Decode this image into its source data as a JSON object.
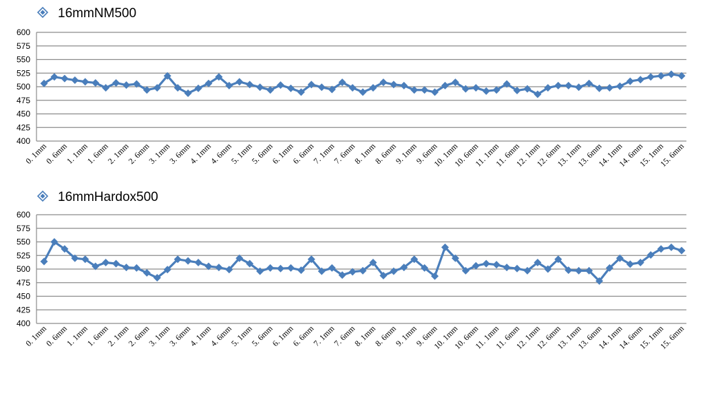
{
  "colors": {
    "series": "#4a7ebb",
    "grid": "#8c8c8c",
    "axis": "#8c8c8c"
  },
  "chart_data": [
    {
      "type": "line",
      "legend": "16mmNM500",
      "legend_position": "top-left",
      "grid": true,
      "ylim": [
        400,
        600
      ],
      "yticks": [
        400,
        425,
        450,
        475,
        500,
        525,
        550,
        575,
        600
      ],
      "tick_labels": [
        "0. 1mm",
        "0. 6mm",
        "1. 1mm",
        "1. 6mm",
        "2. 1mm",
        "2. 6mm",
        "3. 1mm",
        "3. 6mm",
        "4. 1mm",
        "4. 6mm",
        "5. 1mm",
        "5. 6mm",
        "6. 1mm",
        "6. 6mm",
        "7. 1mm",
        "7. 6mm",
        "8. 1mm",
        "8. 6mm",
        "9. 1mm",
        "9. 6mm",
        "10. 1mm",
        "10. 6mm",
        "11. 1mm",
        "11. 6mm",
        "12. 1mm",
        "12. 6mm",
        "13. 1mm",
        "13. 6mm",
        "14. 1mm",
        "14. 6mm",
        "15. 1mm",
        "15. 6mm"
      ],
      "values": [
        506,
        518,
        515,
        512,
        509,
        507,
        498,
        507,
        503,
        505,
        494,
        498,
        520,
        498,
        488,
        497,
        506,
        518,
        502,
        509,
        504,
        499,
        494,
        503,
        497,
        490,
        504,
        499,
        495,
        508,
        498,
        490,
        498,
        508,
        504,
        502,
        494,
        494,
        490,
        502,
        508,
        496,
        498,
        492,
        494,
        505,
        493,
        496,
        486,
        498,
        502,
        502,
        499,
        506,
        497,
        498,
        501,
        510,
        513,
        518,
        520,
        523,
        520
      ]
    },
    {
      "type": "line",
      "legend": "16mmHardox500",
      "legend_position": "top-left",
      "grid": true,
      "ylim": [
        400,
        600
      ],
      "yticks": [
        400,
        425,
        450,
        475,
        500,
        525,
        550,
        575,
        600
      ],
      "tick_labels": [
        "0. 1mm",
        "0. 6mm",
        "1. 1mm",
        "1. 6mm",
        "2. 1mm",
        "2. 6mm",
        "3. 1mm",
        "3. 6mm",
        "4. 1mm",
        "4. 6mm",
        "5. 1mm",
        "5. 6mm",
        "6. 1mm",
        "6. 6mm",
        "7. 1mm",
        "7. 6mm",
        "8. 1mm",
        "8. 6mm",
        "9. 1mm",
        "9. 6mm",
        "10. 1mm",
        "10. 6mm",
        "11. 1mm",
        "11. 6mm",
        "12. 1mm",
        "12. 6mm",
        "13. 1mm",
        "13. 6mm",
        "14. 1mm",
        "14. 6mm",
        "15. 1mm",
        "15. 6mm"
      ],
      "values": [
        514,
        550,
        537,
        520,
        518,
        505,
        512,
        510,
        503,
        502,
        493,
        484,
        499,
        518,
        515,
        512,
        505,
        503,
        499,
        520,
        510,
        496,
        502,
        501,
        502,
        498,
        518,
        496,
        502,
        489,
        495,
        497,
        512,
        488,
        496,
        503,
        518,
        502,
        487,
        540,
        520,
        497,
        506,
        510,
        508,
        503,
        501,
        497,
        512,
        500,
        518,
        498,
        497,
        497,
        478,
        502,
        520,
        509,
        512,
        526,
        537,
        540,
        534
      ]
    }
  ]
}
